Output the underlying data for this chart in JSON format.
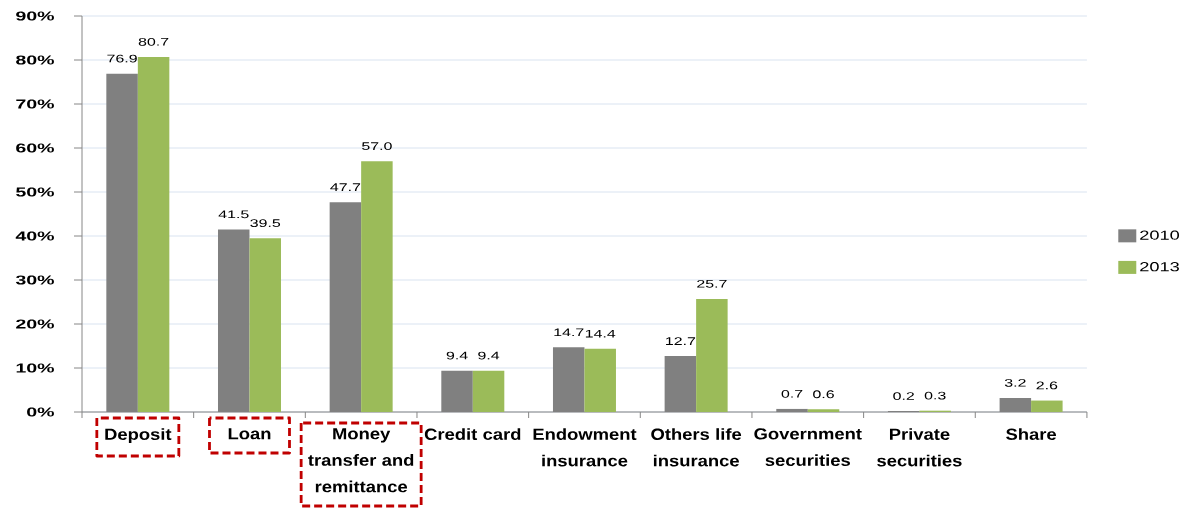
{
  "chart_data": {
    "type": "bar",
    "categories": [
      "Deposit",
      "Loan",
      "Money transfer and remittance",
      "Credit card",
      "Endowment insurance",
      "Others life insurance",
      "Government securities",
      "Private securities",
      "Share"
    ],
    "series": [
      {
        "name": "2010",
        "color": "#808080",
        "values": [
          76.9,
          41.5,
          47.7,
          9.4,
          14.7,
          12.7,
          0.7,
          0.2,
          3.2
        ],
        "value_labels": [
          "76.9",
          "41.5",
          "47.7",
          "9.4",
          "14.7",
          "12.7",
          "0.7",
          "0.2",
          "3.2"
        ]
      },
      {
        "name": "2013",
        "color": "#9bbb59",
        "values": [
          80.7,
          39.5,
          57.0,
          9.4,
          14.4,
          25.7,
          0.6,
          0.3,
          2.6
        ],
        "value_labels": [
          "80.7",
          "39.5",
          "57.0",
          "9.4",
          "14.4",
          "25.7",
          "0.6",
          "0.3",
          "2.6"
        ]
      }
    ],
    "ylim": [
      0,
      90
    ],
    "yticks": [
      {
        "value": 0,
        "label": "0%"
      },
      {
        "value": 10,
        "label": "10%"
      },
      {
        "value": 20,
        "label": "20%"
      },
      {
        "value": 30,
        "label": "30%"
      },
      {
        "value": 40,
        "label": "40%"
      },
      {
        "value": 50,
        "label": "50%"
      },
      {
        "value": 60,
        "label": "60%"
      },
      {
        "value": 70,
        "label": "70%"
      },
      {
        "value": 80,
        "label": "80%"
      },
      {
        "value": 90,
        "label": "90%"
      }
    ],
    "grid": "y",
    "legend": "right"
  }
}
